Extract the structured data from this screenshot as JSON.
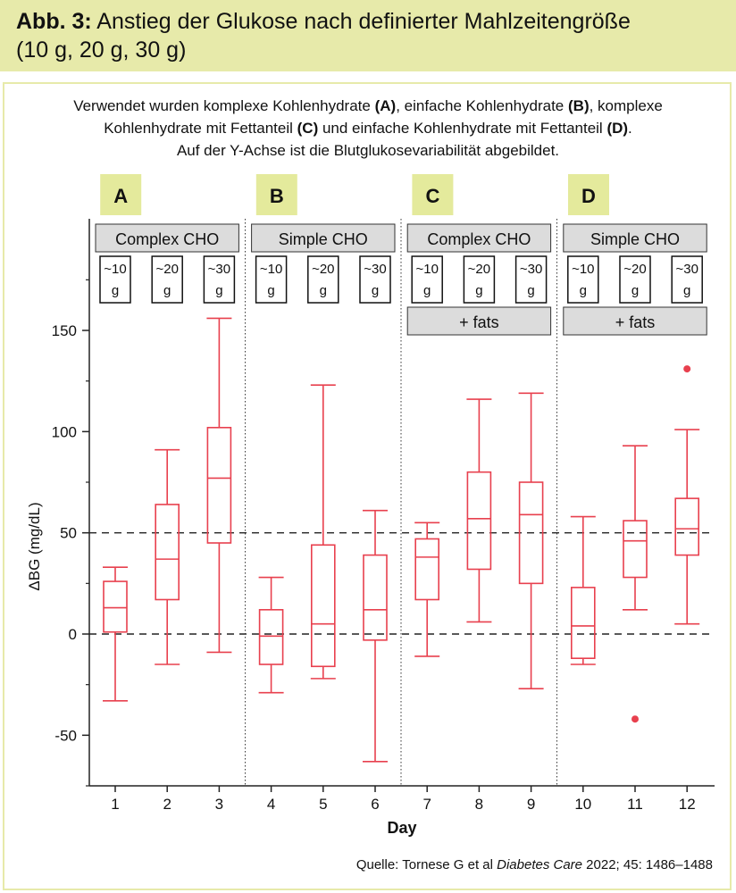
{
  "header": {
    "prefix": "Abb. 3:",
    "title_line1": "Anstieg der Glukose nach definierter Mahlzeitengröße",
    "title_line2": "(10 g, 20 g, 30 g)"
  },
  "description": {
    "l1_a": "Verwendet wurden komplexe Kohlenhydrate ",
    "l1_b": "(A)",
    "l1_c": ", einfache Kohlenhydrate ",
    "l1_d": "(B)",
    "l1_e": ", komplexe",
    "l2_a": "Kohlenhydrate mit Fettanteil ",
    "l2_b": "(C)",
    "l2_c": " und einfache Kohlenhydrate mit Fettanteil ",
    "l2_d": "(D)",
    "l2_e": ".",
    "l3": "Auf der Y-Achse ist die Blutglukosevariabilität abgebildet."
  },
  "source": {
    "prefix": "Quelle: Tornese G et al ",
    "journal": "Diabetes Care",
    "suffix": " 2022; 45: 1486–1488"
  },
  "colors": {
    "header_bg": "#e7eaaa",
    "label_bg": "#e4ea9c",
    "box": "#e8404e",
    "panel_bg": "#dcdcdc"
  },
  "chart_data": {
    "type": "boxplot",
    "xlabel": "Day",
    "ylabel": "ΔBG (mg/dL)",
    "ylim": [
      -75,
      200
    ],
    "yticks": [
      -50,
      0,
      50,
      100,
      150
    ],
    "reference_lines": [
      0,
      50
    ],
    "groups": [
      {
        "letter": "A",
        "label": "Complex CHO",
        "fats": "",
        "doses": [
          "~10\ng",
          "~20\ng",
          "~30\ng"
        ]
      },
      {
        "letter": "B",
        "label": "Simple CHO",
        "fats": "",
        "doses": [
          "~10\ng",
          "~20\ng",
          "~30\ng"
        ]
      },
      {
        "letter": "C",
        "label": "Complex CHO",
        "fats": "+ fats",
        "doses": [
          "~10\ng",
          "~20\ng",
          "~30\ng"
        ]
      },
      {
        "letter": "D",
        "label": "Simple CHO",
        "fats": "+ fats",
        "doses": [
          "~10\ng",
          "~20\ng",
          "~30\ng"
        ]
      }
    ],
    "boxes": [
      {
        "day": "1",
        "min": -33,
        "q1": 1,
        "median": 13,
        "q3": 26,
        "max": 33,
        "outliers": []
      },
      {
        "day": "2",
        "min": -15,
        "q1": 17,
        "median": 37,
        "q3": 64,
        "max": 91,
        "outliers": []
      },
      {
        "day": "3",
        "min": -9,
        "q1": 45,
        "median": 77,
        "q3": 102,
        "max": 156,
        "outliers": []
      },
      {
        "day": "4",
        "min": -29,
        "q1": -15,
        "median": -1,
        "q3": 12,
        "max": 28,
        "outliers": []
      },
      {
        "day": "5",
        "min": -22,
        "q1": -16,
        "median": 5,
        "q3": 44,
        "max": 123,
        "outliers": []
      },
      {
        "day": "6",
        "min": -63,
        "q1": -3,
        "median": 12,
        "q3": 39,
        "max": 61,
        "outliers": []
      },
      {
        "day": "7",
        "min": -11,
        "q1": 17,
        "median": 38,
        "q3": 47,
        "max": 55,
        "outliers": []
      },
      {
        "day": "8",
        "min": 6,
        "q1": 32,
        "median": 57,
        "q3": 80,
        "max": 116,
        "outliers": []
      },
      {
        "day": "9",
        "min": -27,
        "q1": 25,
        "median": 59,
        "q3": 75,
        "max": 119,
        "outliers": []
      },
      {
        "day": "10",
        "min": -15,
        "q1": -12,
        "median": 4,
        "q3": 23,
        "max": 58,
        "outliers": []
      },
      {
        "day": "11",
        "min": 12,
        "q1": 28,
        "median": 46,
        "q3": 56,
        "max": 93,
        "outliers": [
          -42
        ]
      },
      {
        "day": "12",
        "min": 5,
        "q1": 39,
        "median": 52,
        "q3": 67,
        "max": 101,
        "outliers": [
          131
        ]
      }
    ]
  }
}
